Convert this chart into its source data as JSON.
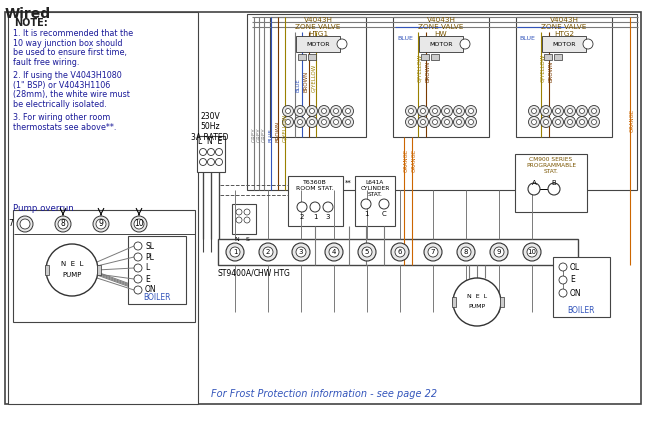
{
  "title": "Wired",
  "bg_color": "#ffffff",
  "note_lines_bold": "NOTE:",
  "note_lines": [
    "1. It is recommended that the",
    "10 way junction box should",
    "be used to ensure first time,",
    "fault free wiring.",
    "",
    "2. If using the V4043H1080",
    "(1\" BSP) or V4043H1106",
    "(28mm), the white wire must",
    "be electrically isolated.",
    "",
    "3. For wiring other room",
    "thermostats see above**."
  ],
  "pump_overrun_label": "Pump overrun",
  "valve_labels": [
    "V4043H\nZONE VALVE\nHTG1",
    "V4043H\nZONE VALVE\nHW",
    "V4043H\nZONE VALVE\nHTG2"
  ],
  "grey": "#7a7a7a",
  "blue": "#3355bb",
  "brown": "#7a3a00",
  "gyellow": "#9a8000",
  "orange": "#cc6600",
  "lbl_color": "#7a5500",
  "note_color": "#1a1a99",
  "footer_text": "For Frost Protection information - see page 22",
  "footer_color": "#3355bb",
  "power_label": "230V\n50Hz\n3A RATED",
  "st9400_label": "ST9400A/C",
  "hw_htg_label": "HW HTG",
  "boiler_label": "BOILER",
  "t6360b_label": "T6360B\nROOM STAT.",
  "l641a_label": "L641A\nCYLINDER\nSTAT.",
  "cm900_label": "CM900 SERIES\nPROGRAMMABLE\nSTAT.",
  "motor_label": "MOTOR"
}
